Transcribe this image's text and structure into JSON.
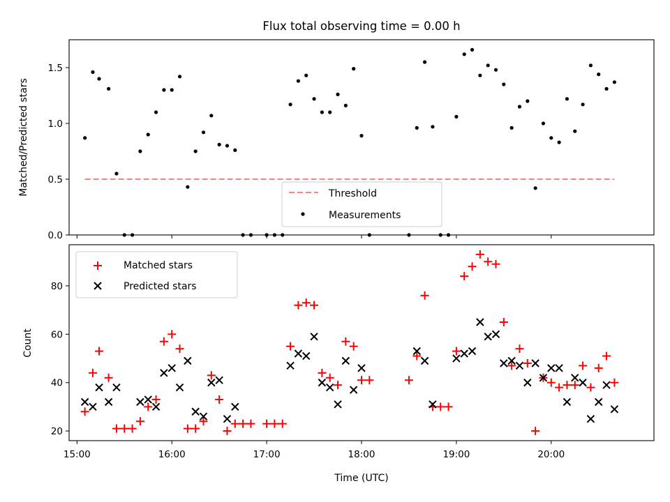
{
  "chart_data": [
    {
      "type": "scatter",
      "title": "Flux total observing time = 0.00 h",
      "ylabel": "Matched/Predicted stars",
      "xlabel": "",
      "xlim": [
        "14:55",
        "21:05"
      ],
      "ylim": [
        0,
        1.75
      ],
      "yticks": [
        0.0,
        0.5,
        1.0,
        1.5
      ],
      "xticks": [
        "15:00",
        "16:00",
        "17:00",
        "18:00",
        "19:00",
        "20:00"
      ],
      "show_x_tick_labels": false,
      "grid": false,
      "legend_position": "lower center",
      "threshold": {
        "name": "Threshold",
        "y": 0.5,
        "x_start": "15:05",
        "x_end": "20:40",
        "color": "#ff8080",
        "style": "dashed"
      },
      "series": [
        {
          "name": "Measurements",
          "color": "#000000",
          "marker": "dot",
          "points": [
            [
              "15:05",
              0.87
            ],
            [
              "15:10",
              1.46
            ],
            [
              "15:14",
              1.4
            ],
            [
              "15:20",
              1.31
            ],
            [
              "15:25",
              0.55
            ],
            [
              "15:30",
              0.0
            ],
            [
              "15:35",
              0.0
            ],
            [
              "15:40",
              0.75
            ],
            [
              "15:45",
              0.9
            ],
            [
              "15:50",
              1.1
            ],
            [
              "15:55",
              1.3
            ],
            [
              "16:00",
              1.3
            ],
            [
              "16:05",
              1.42
            ],
            [
              "16:10",
              0.43
            ],
            [
              "16:15",
              0.75
            ],
            [
              "16:20",
              0.92
            ],
            [
              "16:25",
              1.07
            ],
            [
              "16:30",
              0.81
            ],
            [
              "16:35",
              0.8
            ],
            [
              "16:40",
              0.76
            ],
            [
              "16:45",
              0.0
            ],
            [
              "16:50",
              0.0
            ],
            [
              "17:00",
              0.0
            ],
            [
              "17:05",
              0.0
            ],
            [
              "17:10",
              0.0
            ],
            [
              "17:15",
              1.17
            ],
            [
              "17:20",
              1.38
            ],
            [
              "17:25",
              1.43
            ],
            [
              "17:30",
              1.22
            ],
            [
              "17:35",
              1.1
            ],
            [
              "17:40",
              1.1
            ],
            [
              "17:45",
              1.26
            ],
            [
              "17:50",
              1.16
            ],
            [
              "17:55",
              1.49
            ],
            [
              "18:00",
              0.89
            ],
            [
              "18:05",
              0.0
            ],
            [
              "18:30",
              0.0
            ],
            [
              "18:35",
              0.96
            ],
            [
              "18:40",
              1.55
            ],
            [
              "18:45",
              0.97
            ],
            [
              "18:50",
              0.0
            ],
            [
              "18:55",
              0.0
            ],
            [
              "19:00",
              1.06
            ],
            [
              "19:05",
              1.62
            ],
            [
              "19:10",
              1.66
            ],
            [
              "19:15",
              1.43
            ],
            [
              "19:20",
              1.52
            ],
            [
              "19:25",
              1.48
            ],
            [
              "19:30",
              1.35
            ],
            [
              "19:35",
              0.96
            ],
            [
              "19:40",
              1.15
            ],
            [
              "19:45",
              1.2
            ],
            [
              "19:50",
              0.42
            ],
            [
              "19:55",
              1.0
            ],
            [
              "20:00",
              0.87
            ],
            [
              "20:05",
              0.83
            ],
            [
              "20:10",
              1.22
            ],
            [
              "20:15",
              0.93
            ],
            [
              "20:20",
              1.17
            ],
            [
              "20:25",
              1.52
            ],
            [
              "20:30",
              1.44
            ],
            [
              "20:35",
              1.31
            ],
            [
              "20:40",
              1.37
            ]
          ]
        }
      ]
    },
    {
      "type": "scatter",
      "title": "",
      "ylabel": "Count",
      "xlabel": "Time (UTC)",
      "xlim": [
        "14:55",
        "21:05"
      ],
      "ylim": [
        16,
        97
      ],
      "yticks": [
        20,
        40,
        60,
        80
      ],
      "xticks": [
        "15:00",
        "16:00",
        "17:00",
        "18:00",
        "19:00",
        "20:00"
      ],
      "show_x_tick_labels": true,
      "grid": false,
      "legend_position": "upper left",
      "series": [
        {
          "name": "Matched stars",
          "color": "#ff0000",
          "marker": "plus",
          "points": [
            [
              "15:05",
              28
            ],
            [
              "15:10",
              44
            ],
            [
              "15:14",
              53
            ],
            [
              "15:20",
              42
            ],
            [
              "15:25",
              21
            ],
            [
              "15:30",
              21
            ],
            [
              "15:35",
              21
            ],
            [
              "15:40",
              24
            ],
            [
              "15:45",
              30
            ],
            [
              "15:50",
              33
            ],
            [
              "15:55",
              57
            ],
            [
              "16:00",
              60
            ],
            [
              "16:05",
              54
            ],
            [
              "16:10",
              21
            ],
            [
              "16:15",
              21
            ],
            [
              "16:20",
              24
            ],
            [
              "16:25",
              43
            ],
            [
              "16:30",
              33
            ],
            [
              "16:35",
              20
            ],
            [
              "16:40",
              23
            ],
            [
              "16:45",
              23
            ],
            [
              "16:50",
              23
            ],
            [
              "17:00",
              23
            ],
            [
              "17:05",
              23
            ],
            [
              "17:10",
              23
            ],
            [
              "17:15",
              55
            ],
            [
              "17:20",
              72
            ],
            [
              "17:25",
              73
            ],
            [
              "17:30",
              72
            ],
            [
              "17:35",
              44
            ],
            [
              "17:40",
              42
            ],
            [
              "17:45",
              39
            ],
            [
              "17:50",
              57
            ],
            [
              "17:55",
              55
            ],
            [
              "18:00",
              41
            ],
            [
              "18:05",
              41
            ],
            [
              "18:30",
              41
            ],
            [
              "18:35",
              51
            ],
            [
              "18:40",
              76
            ],
            [
              "18:45",
              30
            ],
            [
              "18:50",
              30
            ],
            [
              "18:55",
              30
            ],
            [
              "19:00",
              53
            ],
            [
              "19:05",
              84
            ],
            [
              "19:10",
              88
            ],
            [
              "19:15",
              93
            ],
            [
              "19:20",
              90
            ],
            [
              "19:25",
              89
            ],
            [
              "19:30",
              65
            ],
            [
              "19:35",
              47
            ],
            [
              "19:40",
              54
            ],
            [
              "19:45",
              48
            ],
            [
              "19:50",
              20
            ],
            [
              "19:55",
              42
            ],
            [
              "20:00",
              40
            ],
            [
              "20:05",
              38
            ],
            [
              "20:10",
              39
            ],
            [
              "20:15",
              39
            ],
            [
              "20:20",
              47
            ],
            [
              "20:25",
              38
            ],
            [
              "20:30",
              46
            ],
            [
              "20:35",
              51
            ],
            [
              "20:40",
              40
            ]
          ]
        },
        {
          "name": "Predicted stars",
          "color": "#000000",
          "marker": "x",
          "points": [
            [
              "15:05",
              32
            ],
            [
              "15:10",
              30
            ],
            [
              "15:14",
              38
            ],
            [
              "15:20",
              32
            ],
            [
              "15:25",
              38
            ],
            [
              "15:40",
              32
            ],
            [
              "15:45",
              33
            ],
            [
              "15:50",
              30
            ],
            [
              "15:55",
              44
            ],
            [
              "16:00",
              46
            ],
            [
              "16:05",
              38
            ],
            [
              "16:10",
              49
            ],
            [
              "16:15",
              28
            ],
            [
              "16:20",
              26
            ],
            [
              "16:25",
              40
            ],
            [
              "16:30",
              41
            ],
            [
              "16:35",
              25
            ],
            [
              "16:40",
              30
            ],
            [
              "17:15",
              47
            ],
            [
              "17:20",
              52
            ],
            [
              "17:25",
              51
            ],
            [
              "17:30",
              59
            ],
            [
              "17:35",
              40
            ],
            [
              "17:40",
              38
            ],
            [
              "17:45",
              31
            ],
            [
              "17:50",
              49
            ],
            [
              "17:55",
              37
            ],
            [
              "18:00",
              46
            ],
            [
              "18:35",
              53
            ],
            [
              "18:40",
              49
            ],
            [
              "18:45",
              31
            ],
            [
              "19:00",
              50
            ],
            [
              "19:05",
              52
            ],
            [
              "19:10",
              53
            ],
            [
              "19:15",
              65
            ],
            [
              "19:20",
              59
            ],
            [
              "19:25",
              60
            ],
            [
              "19:30",
              48
            ],
            [
              "19:35",
              49
            ],
            [
              "19:40",
              47
            ],
            [
              "19:45",
              40
            ],
            [
              "19:50",
              48
            ],
            [
              "19:55",
              42
            ],
            [
              "20:00",
              46
            ],
            [
              "20:05",
              46
            ],
            [
              "20:10",
              32
            ],
            [
              "20:15",
              42
            ],
            [
              "20:20",
              40
            ],
            [
              "20:25",
              25
            ],
            [
              "20:30",
              32
            ],
            [
              "20:35",
              39
            ],
            [
              "20:40",
              29
            ]
          ]
        }
      ]
    }
  ]
}
